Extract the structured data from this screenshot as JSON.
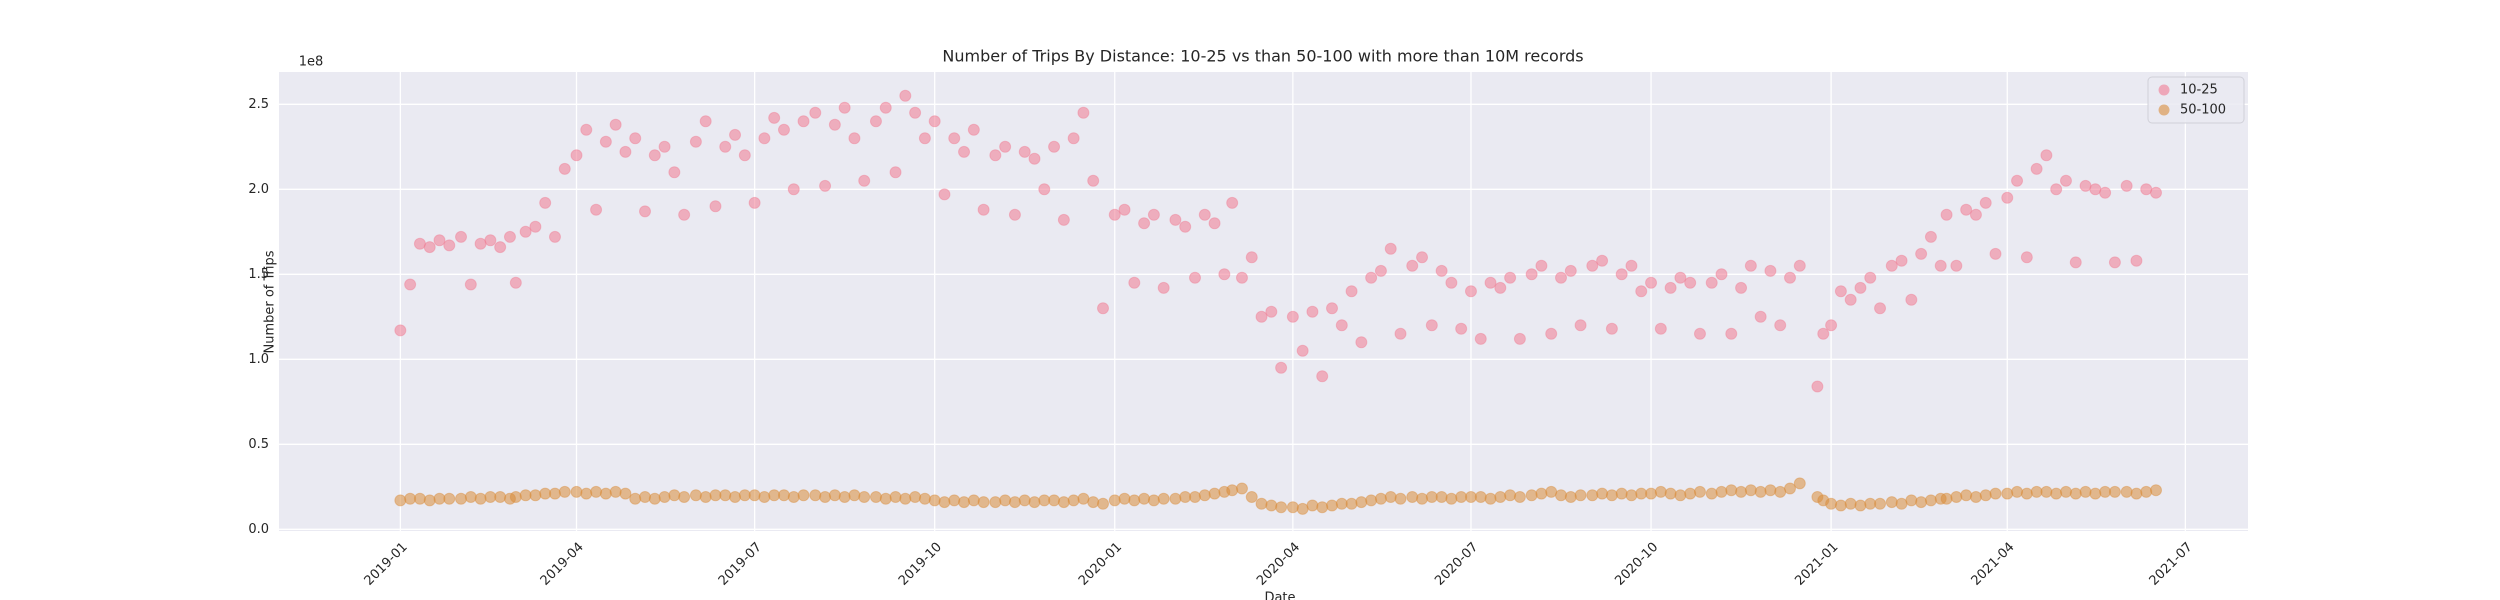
{
  "chart_data": {
    "type": "scatter",
    "title": "Number of Trips By Distance: 10-25 vs than 50-100 with more than 10M records",
    "xlabel": "Date",
    "ylabel": "Number of Trips",
    "y_offset_label": "1e8",
    "xlim": [
      "2018-10-31",
      "2021-08-02"
    ],
    "xticks": [
      "2019-01",
      "2019-04",
      "2019-07",
      "2019-10",
      "2020-01",
      "2020-04",
      "2020-07",
      "2020-10",
      "2021-01",
      "2021-04",
      "2021-07"
    ],
    "ylim": [
      -0.01,
      2.69
    ],
    "yticks": [
      {
        "value": 0,
        "label": "0.0"
      },
      0.5,
      {
        "value": 1,
        "label": "1.0"
      },
      1.5,
      {
        "value": 2,
        "label": "2.0"
      },
      2.5
    ],
    "grid": true,
    "legend": "upper right",
    "x": [
      "2019-01-01",
      "2019-01-06",
      "2019-01-11",
      "2019-01-16",
      "2019-01-21",
      "2019-01-26",
      "2019-02-01",
      "2019-02-06",
      "2019-02-11",
      "2019-02-16",
      "2019-02-21",
      "2019-02-26",
      "2019-03-01",
      "2019-03-06",
      "2019-03-11",
      "2019-03-16",
      "2019-03-21",
      "2019-03-26",
      "2019-04-01",
      "2019-04-06",
      "2019-04-11",
      "2019-04-16",
      "2019-04-21",
      "2019-04-26",
      "2019-05-01",
      "2019-05-06",
      "2019-05-11",
      "2019-05-16",
      "2019-05-21",
      "2019-05-26",
      "2019-06-01",
      "2019-06-06",
      "2019-06-11",
      "2019-06-16",
      "2019-06-21",
      "2019-06-26",
      "2019-07-01",
      "2019-07-06",
      "2019-07-11",
      "2019-07-16",
      "2019-07-21",
      "2019-07-26",
      "2019-08-01",
      "2019-08-06",
      "2019-08-11",
      "2019-08-16",
      "2019-08-21",
      "2019-08-26",
      "2019-09-01",
      "2019-09-06",
      "2019-09-11",
      "2019-09-16",
      "2019-09-21",
      "2019-09-26",
      "2019-10-01",
      "2019-10-06",
      "2019-10-11",
      "2019-10-16",
      "2019-10-21",
      "2019-10-26",
      "2019-11-01",
      "2019-11-06",
      "2019-11-11",
      "2019-11-16",
      "2019-11-21",
      "2019-11-26",
      "2019-12-01",
      "2019-12-06",
      "2019-12-11",
      "2019-12-16",
      "2019-12-21",
      "2019-12-26",
      "2020-01-01",
      "2020-01-06",
      "2020-01-11",
      "2020-01-16",
      "2020-01-21",
      "2020-01-26",
      "2020-02-01",
      "2020-02-06",
      "2020-02-11",
      "2020-02-16",
      "2020-02-21",
      "2020-02-26",
      "2020-03-01",
      "2020-03-06",
      "2020-03-11",
      "2020-03-16",
      "2020-03-21",
      "2020-03-26",
      "2020-04-01",
      "2020-04-06",
      "2020-04-11",
      "2020-04-16",
      "2020-04-21",
      "2020-04-26",
      "2020-05-01",
      "2020-05-06",
      "2020-05-11",
      "2020-05-16",
      "2020-05-21",
      "2020-05-26",
      "2020-06-01",
      "2020-06-06",
      "2020-06-11",
      "2020-06-16",
      "2020-06-21",
      "2020-06-26",
      "2020-07-01",
      "2020-07-06",
      "2020-07-11",
      "2020-07-16",
      "2020-07-21",
      "2020-07-26",
      "2020-08-01",
      "2020-08-06",
      "2020-08-11",
      "2020-08-16",
      "2020-08-21",
      "2020-08-26",
      "2020-09-01",
      "2020-09-06",
      "2020-09-11",
      "2020-09-16",
      "2020-09-21",
      "2020-09-26",
      "2020-10-01",
      "2020-10-06",
      "2020-10-11",
      "2020-10-16",
      "2020-10-21",
      "2020-10-26",
      "2020-11-01",
      "2020-11-06",
      "2020-11-11",
      "2020-11-16",
      "2020-11-21",
      "2020-11-26",
      "2020-12-01",
      "2020-12-06",
      "2020-12-11",
      "2020-12-16",
      "2020-12-25",
      "2020-12-28",
      "2021-01-01",
      "2021-01-06",
      "2021-01-11",
      "2021-01-16",
      "2021-01-21",
      "2021-01-26",
      "2021-02-01",
      "2021-02-06",
      "2021-02-11",
      "2021-02-16",
      "2021-02-21",
      "2021-02-26",
      "2021-03-01",
      "2021-03-06",
      "2021-03-11",
      "2021-03-16",
      "2021-03-21",
      "2021-03-26",
      "2021-04-01",
      "2021-04-06",
      "2021-04-11",
      "2021-04-16",
      "2021-04-21",
      "2021-04-26",
      "2021-05-01",
      "2021-05-06",
      "2021-05-11",
      "2021-05-16",
      "2021-05-21",
      "2021-05-26",
      "2021-06-01",
      "2021-06-06",
      "2021-06-11",
      "2021-06-16"
    ],
    "series": [
      {
        "name": "10-25",
        "color": "#f07a92",
        "values": [
          1.17,
          1.44,
          1.68,
          1.66,
          1.7,
          1.67,
          1.72,
          1.44,
          1.68,
          1.7,
          1.66,
          1.72,
          1.45,
          1.75,
          1.78,
          1.92,
          1.72,
          2.12,
          2.2,
          2.35,
          1.88,
          2.28,
          2.38,
          2.22,
          2.3,
          1.87,
          2.2,
          2.25,
          2.1,
          1.85,
          2.28,
          2.4,
          1.9,
          2.25,
          2.32,
          2.2,
          1.92,
          2.3,
          2.42,
          2.35,
          2.0,
          2.4,
          2.45,
          2.02,
          2.38,
          2.48,
          2.3,
          2.05,
          2.4,
          2.48,
          2.1,
          2.55,
          2.45,
          2.3,
          2.4,
          1.97,
          2.3,
          2.22,
          2.35,
          1.88,
          2.2,
          2.25,
          1.85,
          2.22,
          2.18,
          2.0,
          2.25,
          1.82,
          2.3,
          2.45,
          2.05,
          1.3,
          1.85,
          1.88,
          1.45,
          1.8,
          1.85,
          1.42,
          1.82,
          1.78,
          1.48,
          1.85,
          1.8,
          1.5,
          1.92,
          1.48,
          1.6,
          1.25,
          1.28,
          0.95,
          1.25,
          1.05,
          1.28,
          0.9,
          1.3,
          1.2,
          1.4,
          1.1,
          1.48,
          1.52,
          1.65,
          1.15,
          1.55,
          1.6,
          1.2,
          1.52,
          1.45,
          1.18,
          1.4,
          1.12,
          1.45,
          1.42,
          1.48,
          1.12,
          1.5,
          1.55,
          1.15,
          1.48,
          1.52,
          1.2,
          1.55,
          1.58,
          1.18,
          1.5,
          1.55,
          1.4,
          1.45,
          1.18,
          1.42,
          1.48,
          1.45,
          1.15,
          1.45,
          1.5,
          1.15,
          1.42,
          1.55,
          1.25,
          1.52,
          1.2,
          1.48,
          1.55,
          0.84,
          1.15,
          1.2,
          1.4,
          1.35,
          1.42,
          1.48,
          1.3,
          1.55,
          1.58,
          1.35,
          1.62,
          1.72,
          1.55,
          1.85,
          1.55,
          1.88,
          1.85,
          1.92,
          1.62,
          1.95,
          2.05,
          1.6,
          2.12,
          2.2,
          2.0,
          2.05,
          1.57,
          2.02,
          2.0,
          1.98,
          1.57,
          2.02,
          1.58,
          2.0,
          1.98
        ]
      },
      {
        "name": "50-100",
        "color": "#d98c3a",
        "values": [
          0.17,
          0.18,
          0.18,
          0.17,
          0.18,
          0.18,
          0.18,
          0.19,
          0.18,
          0.19,
          0.19,
          0.18,
          0.19,
          0.2,
          0.2,
          0.21,
          0.21,
          0.22,
          0.22,
          0.21,
          0.22,
          0.21,
          0.22,
          0.21,
          0.18,
          0.19,
          0.18,
          0.19,
          0.2,
          0.19,
          0.2,
          0.19,
          0.2,
          0.2,
          0.19,
          0.2,
          0.2,
          0.19,
          0.2,
          0.2,
          0.19,
          0.2,
          0.2,
          0.19,
          0.2,
          0.19,
          0.2,
          0.19,
          0.19,
          0.18,
          0.19,
          0.18,
          0.19,
          0.18,
          0.17,
          0.16,
          0.17,
          0.16,
          0.17,
          0.16,
          0.16,
          0.17,
          0.16,
          0.17,
          0.16,
          0.17,
          0.17,
          0.16,
          0.17,
          0.18,
          0.16,
          0.15,
          0.17,
          0.18,
          0.17,
          0.18,
          0.17,
          0.18,
          0.18,
          0.19,
          0.19,
          0.2,
          0.21,
          0.22,
          0.23,
          0.24,
          0.19,
          0.15,
          0.14,
          0.13,
          0.13,
          0.12,
          0.14,
          0.13,
          0.14,
          0.15,
          0.15,
          0.16,
          0.17,
          0.18,
          0.19,
          0.18,
          0.19,
          0.18,
          0.19,
          0.19,
          0.18,
          0.19,
          0.19,
          0.19,
          0.18,
          0.19,
          0.2,
          0.19,
          0.2,
          0.21,
          0.22,
          0.2,
          0.19,
          0.2,
          0.2,
          0.21,
          0.2,
          0.21,
          0.2,
          0.21,
          0.21,
          0.22,
          0.21,
          0.2,
          0.21,
          0.22,
          0.21,
          0.22,
          0.23,
          0.22,
          0.23,
          0.22,
          0.23,
          0.22,
          0.24,
          0.27,
          0.19,
          0.17,
          0.15,
          0.14,
          0.15,
          0.14,
          0.15,
          0.15,
          0.16,
          0.15,
          0.17,
          0.16,
          0.17,
          0.18,
          0.18,
          0.19,
          0.2,
          0.19,
          0.2,
          0.21,
          0.21,
          0.22,
          0.21,
          0.22,
          0.22,
          0.21,
          0.22,
          0.21,
          0.22,
          0.21,
          0.22,
          0.22,
          0.22,
          0.21,
          0.22,
          0.23
        ]
      }
    ]
  }
}
